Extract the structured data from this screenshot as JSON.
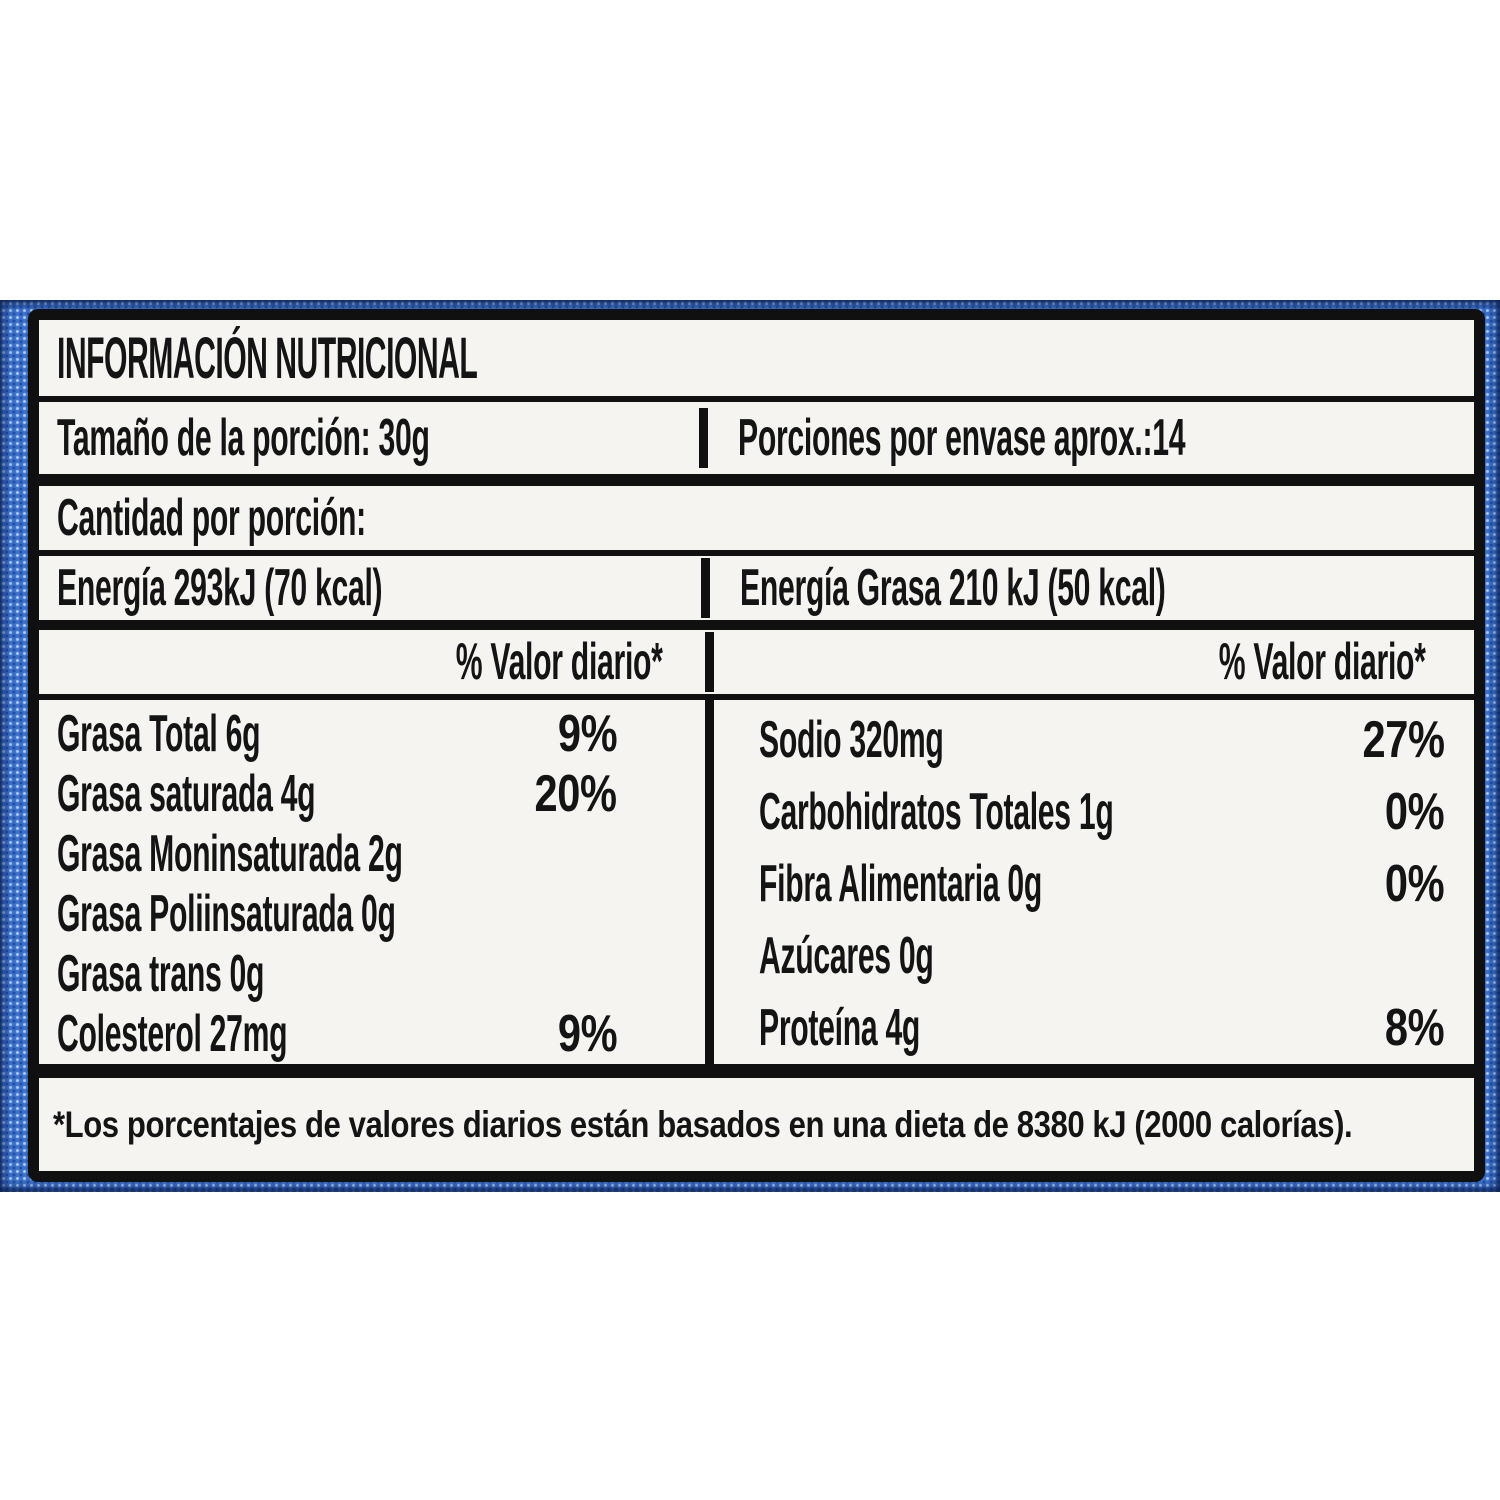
{
  "colors": {
    "page_background": "#ffffff",
    "band_blue": "#3a72cc",
    "band_dot_light": "#ffffff",
    "band_dot_dark": "#1c3c7e",
    "label_background": "#f6f4f1",
    "ink": "#141414"
  },
  "label": {
    "title": "INFORMACIÓN NUTRICIONAL",
    "serving": {
      "size": "Tamaño de la porción: 30g",
      "per_package": "Porciones por envase aprox.:14"
    },
    "amount_heading": "Cantidad por porción:",
    "energy": {
      "total": "Energía 293kJ (70 kcal)",
      "from_fat": "Energía Grasa 210 kJ (50 kcal)"
    },
    "daily_value_header": {
      "left": "% Valor diario*",
      "right": "% Valor diario*"
    },
    "nutrients_left": [
      {
        "name": "Grasa Total 6g",
        "dv": "9%"
      },
      {
        "name": "Grasa saturada 4g",
        "dv": "20%"
      },
      {
        "name": "Grasa Moninsaturada 2g",
        "dv": ""
      },
      {
        "name": "Grasa Poliinsaturada 0g",
        "dv": ""
      },
      {
        "name": "Grasa trans 0g",
        "dv": ""
      },
      {
        "name": "Colesterol 27mg",
        "dv": "9%"
      }
    ],
    "nutrients_right": [
      {
        "name": "Sodio 320mg",
        "dv": "27%"
      },
      {
        "name": "Carbohidratos Totales 1g",
        "dv": "0%"
      },
      {
        "name": "Fibra Alimentaria 0g",
        "dv": "0%"
      },
      {
        "name": "Azúcares 0g",
        "dv": ""
      },
      {
        "name": "Proteína 4g",
        "dv": "8%"
      }
    ],
    "footnote": "*Los porcentajes de valores diarios están basados en una dieta de 8380 kJ (2000 calorías)."
  }
}
